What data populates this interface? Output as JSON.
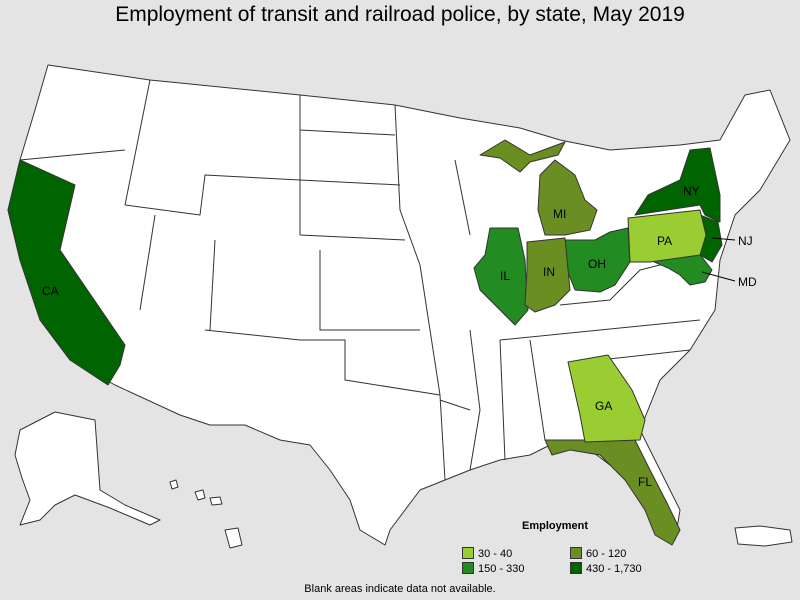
{
  "title": "Employment of transit and railroad police, by state, May 2019",
  "footnote": "Blank areas indicate data not available.",
  "colors": {
    "background": "#e4e4e4",
    "no_data": "#ffffff",
    "range_30_40": "#9acd32",
    "range_60_120": "#6b8e23",
    "range_150_330": "#228b22",
    "range_430_1730": "#006400"
  },
  "legend": {
    "title": "Employment",
    "items": [
      {
        "label": "30 - 40",
        "color": "#9acd32"
      },
      {
        "label": "60 - 120",
        "color": "#6b8e23"
      },
      {
        "label": "150 - 330",
        "color": "#228b22"
      },
      {
        "label": "430 - 1,730",
        "color": "#006400"
      }
    ]
  },
  "states": [
    {
      "abbr": "CA",
      "range": "430 - 1,730"
    },
    {
      "abbr": "NY",
      "range": "430 - 1,730"
    },
    {
      "abbr": "NJ",
      "range": "430 - 1,730"
    },
    {
      "abbr": "IL",
      "range": "150 - 330"
    },
    {
      "abbr": "OH",
      "range": "150 - 330"
    },
    {
      "abbr": "MD",
      "range": "150 - 330"
    },
    {
      "abbr": "MI",
      "range": "60 - 120"
    },
    {
      "abbr": "IN",
      "range": "60 - 120"
    },
    {
      "abbr": "FL",
      "range": "60 - 120"
    },
    {
      "abbr": "PA",
      "range": "30 - 40"
    },
    {
      "abbr": "GA",
      "range": "30 - 40"
    }
  ],
  "labels": {
    "CA": "CA",
    "NY": "NY",
    "NJ": "NJ",
    "IL": "IL",
    "OH": "OH",
    "MD": "MD",
    "MI": "MI",
    "IN": "IN",
    "FL": "FL",
    "PA": "PA",
    "GA": "GA"
  }
}
